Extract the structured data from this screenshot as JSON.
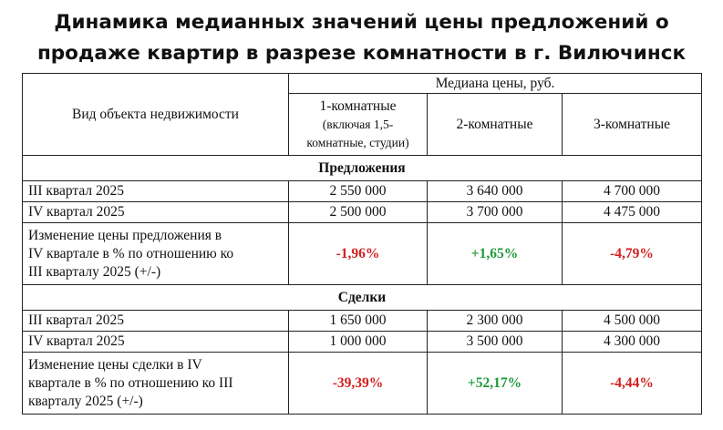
{
  "title_line1": "Динамика медианных значений цены предложений о",
  "title_line2": "продаже квартир в разрезе комнатности в г. Вилючинск",
  "header": {
    "col0": "Вид объекта недвижимости",
    "group": "Медиана цены, руб.",
    "col1_line1": "1-комнатные",
    "col1_line2": "(включая 1,5-",
    "col1_line3": "комнатные, студии)",
    "col2": "2-комнатные",
    "col3": "3-комнатные"
  },
  "offers": {
    "section": "Предложения",
    "rows": [
      {
        "label": "III квартал 2025",
        "v1": "2 550 000",
        "v2": "3 640 000",
        "v3": "4 700 000"
      },
      {
        "label": "IV квартал 2025",
        "v1": "2 500 000",
        "v2": "3 700 000",
        "v3": "4 475 000"
      }
    ],
    "change": {
      "label_line1": "Изменение цены предложения в",
      "label_line2": "IV квартале в % по отношению ко",
      "label_line3": "III кварталу 2025 (+/-)",
      "v1": "-1,96%",
      "v2": "+1,65%",
      "v3": "-4,79%"
    }
  },
  "deals": {
    "section": "Сделки",
    "rows": [
      {
        "label": "III квартал 2025",
        "v1": "1 650 000",
        "v2": "2 300 000",
        "v3": "4 500 000"
      },
      {
        "label": "IV квартал 2025",
        "v1": "1 000 000",
        "v2": "3 500 000",
        "v3": "4 300 000"
      }
    ],
    "change": {
      "label_line1": "Изменение цены сделки в IV",
      "label_line2": "квартале в % по отношению ко III",
      "label_line3": "кварталу 2025 (+/-)",
      "v1": "-39,39%",
      "v2": "+52,17%",
      "v3": "-4,44%"
    }
  },
  "colors": {
    "negative": "#d21f1f",
    "positive": "#1d9a3a"
  }
}
